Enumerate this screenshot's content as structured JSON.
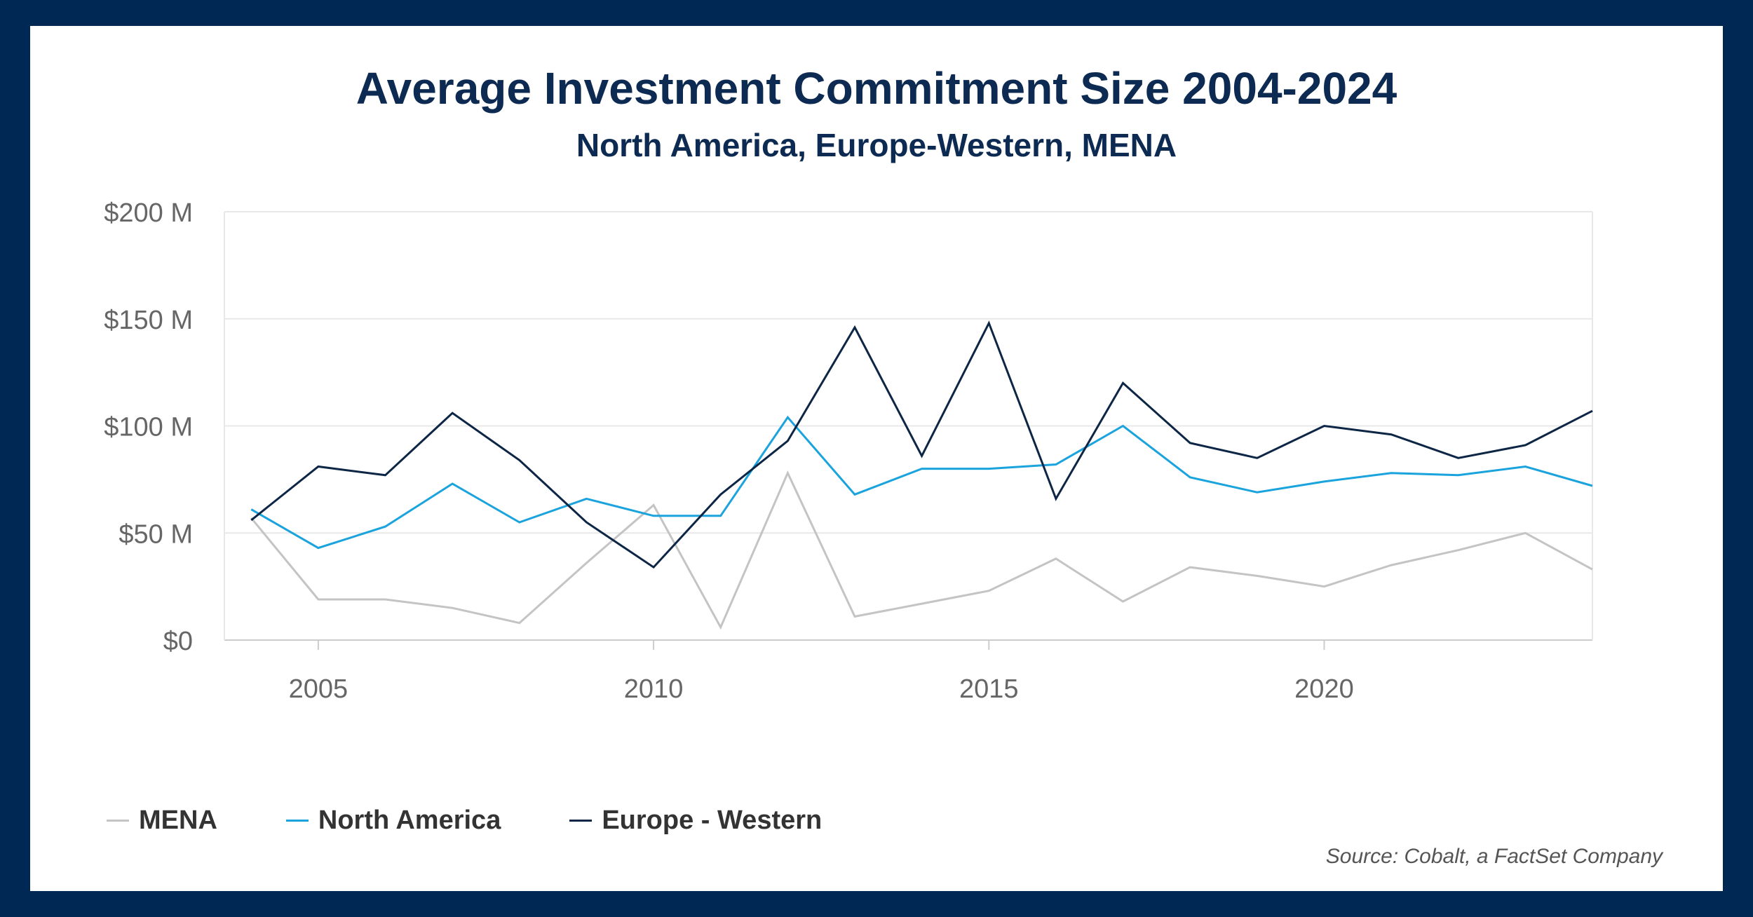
{
  "title": "Average Investment Commitment Size 2004-2024",
  "subtitle": "North America, Europe-Western, MENA",
  "source": "Source: Cobalt, a FactSet Company",
  "chart_data": {
    "type": "line",
    "xlim": [
      2003.6,
      2024
    ],
    "ylim": [
      0,
      200
    ],
    "grid": true,
    "legend": "bottom-left",
    "y_ticks": [
      {
        "value": 0,
        "label": "$0"
      },
      {
        "value": 50,
        "label": "$50 M"
      },
      {
        "value": 100,
        "label": "$100 M"
      },
      {
        "value": 150,
        "label": "$150 M"
      },
      {
        "value": 200,
        "label": "$200 M"
      }
    ],
    "x_ticks": [
      {
        "value": 2005,
        "label": "2005"
      },
      {
        "value": 2010,
        "label": "2010"
      },
      {
        "value": 2015,
        "label": "2015"
      },
      {
        "value": 2020,
        "label": "2020"
      }
    ],
    "x": [
      2004,
      2005,
      2006,
      2007,
      2008,
      2009,
      2010,
      2011,
      2012,
      2013,
      2014,
      2015,
      2016,
      2017,
      2018,
      2019,
      2020,
      2021,
      2022,
      2023,
      2024
    ],
    "series": [
      {
        "name": "MENA",
        "color": "#c4c4c4",
        "values": [
          57,
          19,
          19,
          15,
          8,
          36,
          63,
          6,
          78,
          11,
          17,
          23,
          38,
          18,
          34,
          30,
          25,
          35,
          42,
          50,
          33
        ]
      },
      {
        "name": "North America",
        "color": "#1aa3dc",
        "values": [
          61,
          43,
          53,
          73,
          55,
          66,
          58,
          58,
          104,
          68,
          80,
          80,
          82,
          100,
          76,
          69,
          74,
          78,
          77,
          81,
          72
        ]
      },
      {
        "name": "Europe - Western",
        "color": "#0d2645",
        "values": [
          56,
          81,
          77,
          106,
          84,
          55,
          34,
          68,
          93,
          146,
          86,
          148,
          66,
          120,
          92,
          85,
          100,
          96,
          85,
          91,
          107
        ]
      }
    ]
  }
}
